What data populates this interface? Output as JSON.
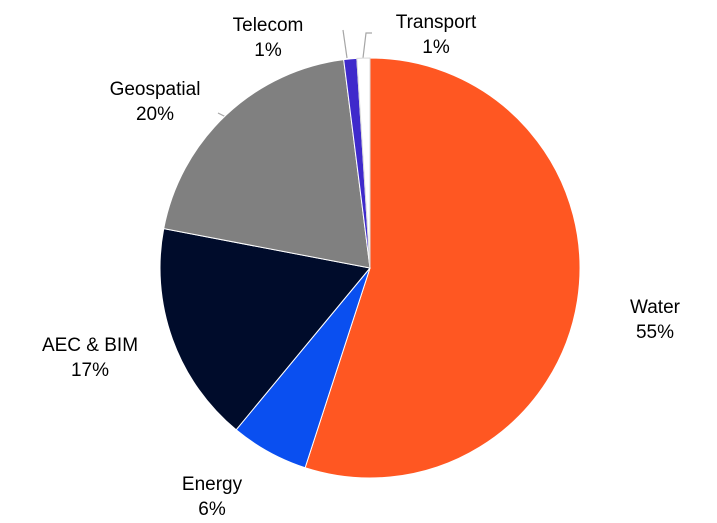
{
  "chart_data": {
    "type": "pie",
    "categories": [
      "Water",
      "Energy",
      "AEC & BIM",
      "Geospatial",
      "Telecom",
      "Transport"
    ],
    "values": [
      55,
      6,
      17,
      20,
      1,
      1
    ],
    "value_labels": [
      "55%",
      "6%",
      "17%",
      "20%",
      "1%",
      "1%"
    ],
    "colors": [
      "#ff5722",
      "#0a4ff0",
      "#000c2b",
      "#808080",
      "#3f2acb",
      "#ffffff"
    ]
  }
}
